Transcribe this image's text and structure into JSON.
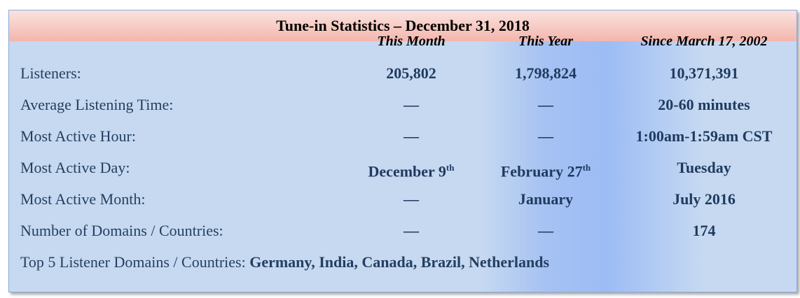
{
  "title": "Tune-in Statistics – December 31, 2018",
  "columns": [
    "This Month",
    "This Year",
    "Since March 17, 2002"
  ],
  "rows": [
    {
      "label": "Listeners:",
      "values": [
        {
          "text": "205,802"
        },
        {
          "text": "1,798,824"
        },
        {
          "text": "10,371,391"
        }
      ]
    },
    {
      "label": "Average Listening Time:",
      "values": [
        {
          "text": "—"
        },
        {
          "text": "—"
        },
        {
          "text": "20-60 minutes"
        }
      ]
    },
    {
      "label": "Most Active Hour:",
      "values": [
        {
          "text": "—"
        },
        {
          "text": "—"
        },
        {
          "text": "1:00am-1:59am CST"
        }
      ]
    },
    {
      "label": "Most Active Day:",
      "values": [
        {
          "text": "December 9",
          "sup": "th"
        },
        {
          "text": "February 27",
          "sup": "th"
        },
        {
          "text": "Tuesday"
        }
      ]
    },
    {
      "label": "Most Active Month:",
      "values": [
        {
          "text": "—"
        },
        {
          "text": "January"
        },
        {
          "text": "July 2016"
        }
      ]
    },
    {
      "label": "Number of Domains / Countries:",
      "values": [
        {
          "text": "—"
        },
        {
          "text": "—"
        },
        {
          "text": "174"
        }
      ]
    }
  ],
  "footer": {
    "label": "Top 5 Listener Domains / Countries:",
    "value": "Germany, India, Canada, Brazil, Netherlands"
  }
}
